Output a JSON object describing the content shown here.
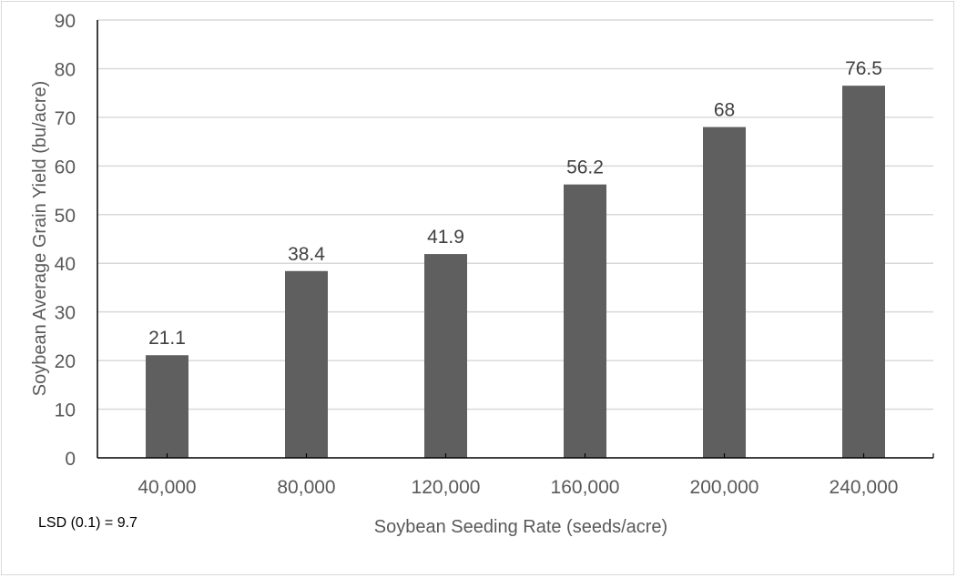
{
  "chart_data": {
    "type": "bar",
    "title": "",
    "xlabel": "Soybean Seeding Rate (seeds/acre)",
    "ylabel": "Soybean Average Grain Yield (bu/acre)",
    "categories": [
      "40,000",
      "80,000",
      "120,000",
      "160,000",
      "200,000",
      "240,000"
    ],
    "values": [
      21.1,
      38.4,
      41.9,
      56.2,
      68,
      76.5
    ],
    "data_labels": [
      "21.1",
      "38.4",
      "41.9",
      "56.2",
      "68",
      "76.5"
    ],
    "ylim": [
      0,
      90
    ],
    "yticks": [
      "0",
      "10",
      "20",
      "30",
      "40",
      "50",
      "60",
      "70",
      "80",
      "90"
    ],
    "grid": true,
    "legend": null,
    "bar_color": "#5f5f5f",
    "annotation": "LSD (0.1) = 9.7"
  }
}
